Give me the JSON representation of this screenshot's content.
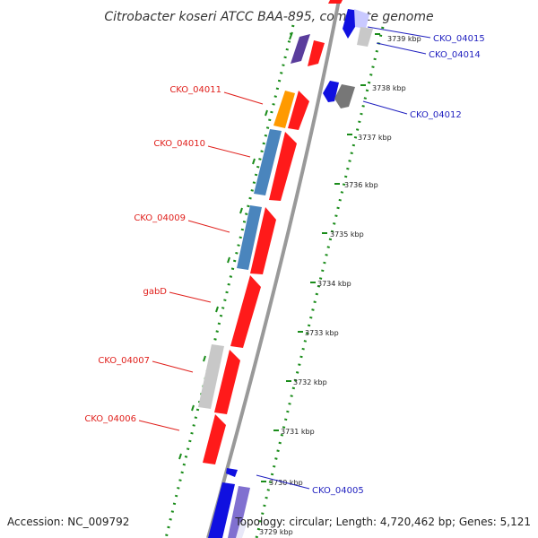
{
  "title": "Citrobacter koseri ATCC BAA-895, complete genome",
  "footer": {
    "accession": "Accession: NC_009792",
    "topology": "Topology: circular; Length: 4,720,462 bp; Genes: 5,121"
  },
  "colors": {
    "forward_cds": "#ff1a1a",
    "reverse_cds": "#1010e0",
    "steelblue": "#4a85bd",
    "orange": "#ff9900",
    "gray": "#bdbdbd",
    "darkgray": "#777777",
    "purple": "#6040a0",
    "backbone": "#999999",
    "tick": "#1a8c1a",
    "label_red": "#e0201c",
    "label_blue": "#1f1fbf"
  },
  "kbp_labels": [
    "3739 kbp",
    "3738 kbp",
    "3737 kbp",
    "3736 kbp",
    "3735 kbp",
    "3734 kbp",
    "3733 kbp",
    "3732 kbp",
    "3731 kbp",
    "3730 kbp",
    "3729 kbp"
  ],
  "gene_labels_left": [
    "CKO_04011",
    "CKO_04010",
    "CKO_04009",
    "gabD",
    "CKO_04007",
    "CKO_04006"
  ],
  "gene_labels_right": [
    "CKO_04015",
    "CKO_04014",
    "CKO_04012",
    "CKO_04005"
  ]
}
